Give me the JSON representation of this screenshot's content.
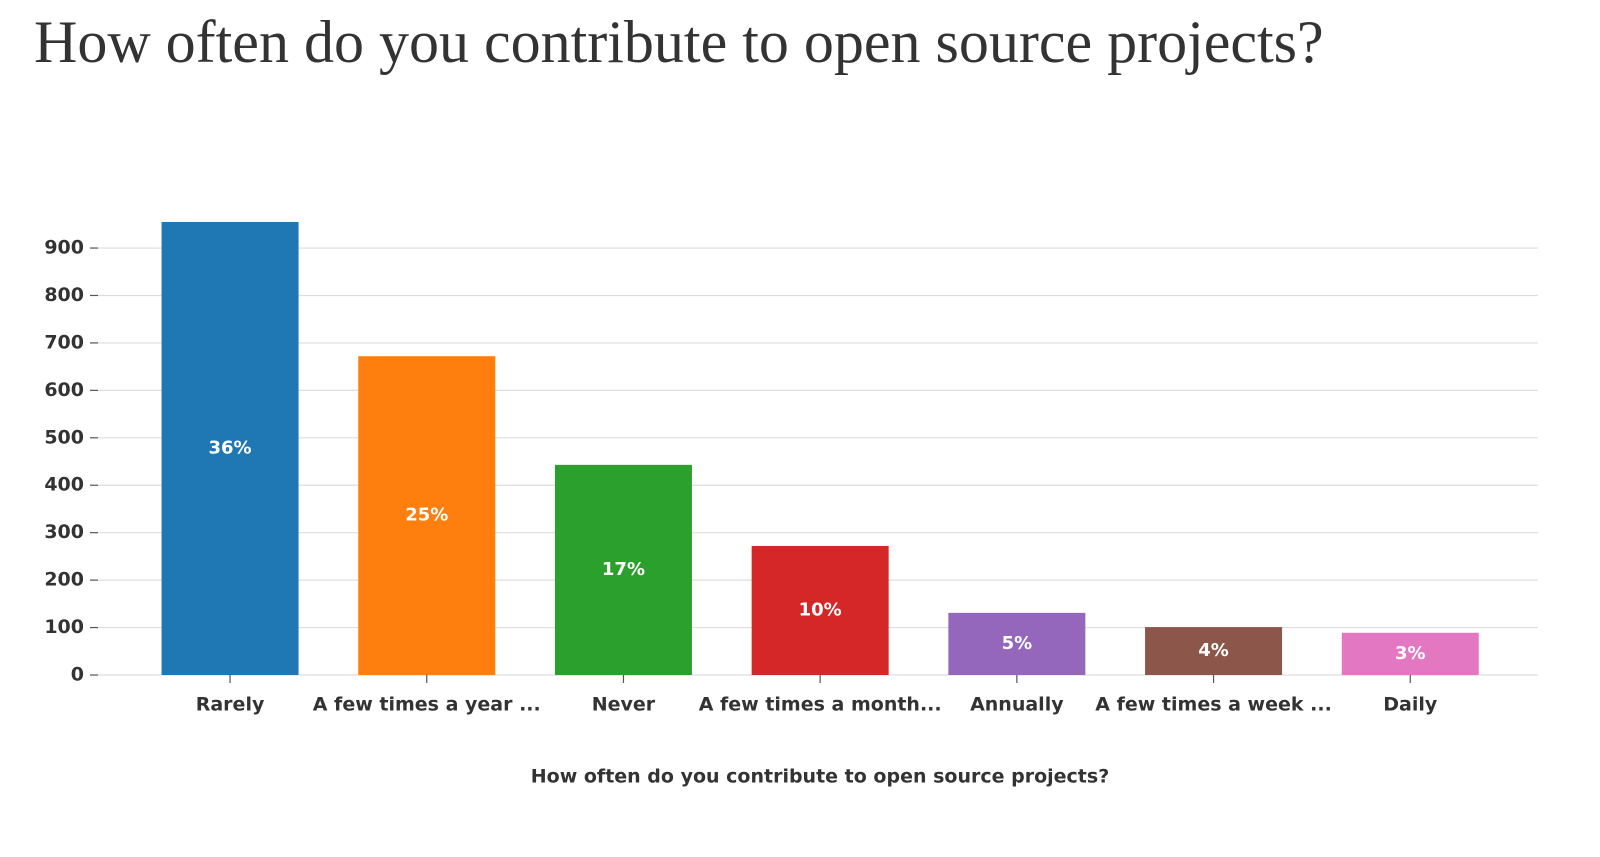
{
  "chart_data": {
    "type": "bar",
    "title": "How often do you contribute to open source projects?",
    "x_label": "How often do you contribute to open source projects?",
    "categories": [
      "Rarely",
      "A few times a year ...",
      "Never",
      "A few times a month...",
      "Annually",
      "A few times a week ...",
      "Daily"
    ],
    "values": [
      955,
      672,
      443,
      272,
      131,
      101,
      89
    ],
    "bar_labels": [
      "36%",
      "25%",
      "17%",
      "10%",
      "5%",
      "4%",
      "3%"
    ],
    "colors": [
      "#1f77b4",
      "#ff7f0e",
      "#2ca02c",
      "#d62728",
      "#9467bd",
      "#8c564b",
      "#e377c2"
    ],
    "ylim": [
      0,
      1000
    ],
    "yticks": [
      0,
      100,
      200,
      300,
      400,
      500,
      600,
      700,
      800,
      900
    ],
    "grid": true
  }
}
